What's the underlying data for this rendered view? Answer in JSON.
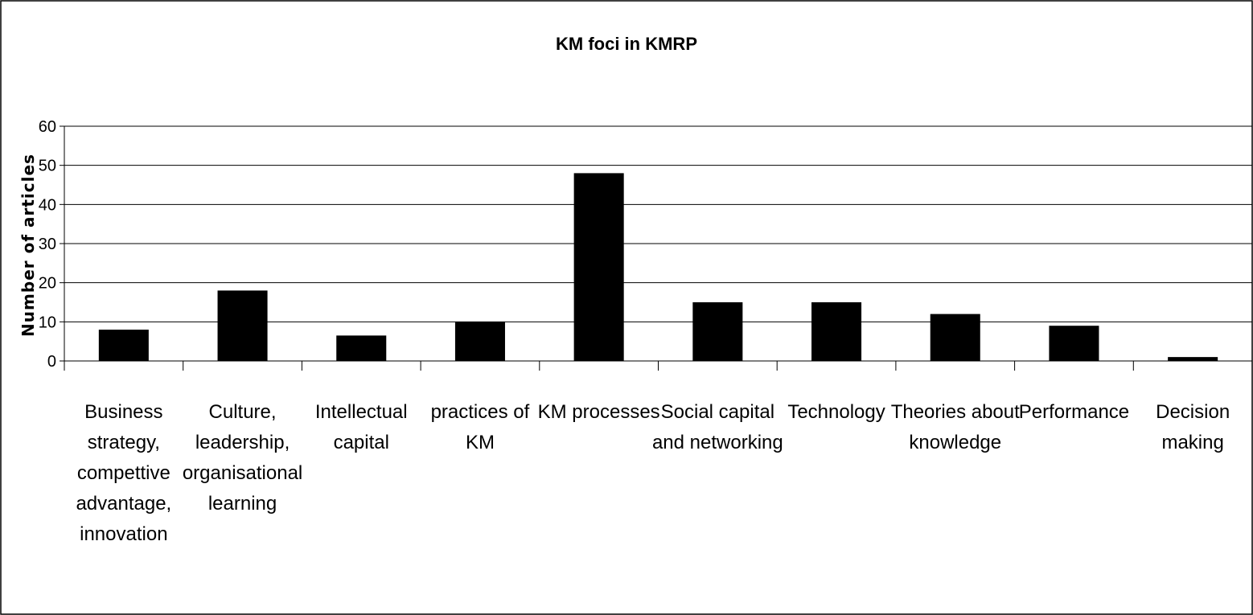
{
  "chart_data": {
    "type": "bar",
    "title": "KM foci in KMRP",
    "ylabel": "Number of articles",
    "xlabel": "",
    "ylim": [
      0,
      60
    ],
    "yticks": [
      0,
      10,
      20,
      30,
      40,
      50,
      60
    ],
    "grid": true,
    "legend": "none",
    "bar_color": "#000000",
    "categories": [
      [
        "Business",
        "strategy,",
        "compettive",
        "advantage,",
        "innovation"
      ],
      [
        "Culture,",
        "leadership,",
        "organisational",
        "learning"
      ],
      [
        "Intellectual",
        "capital"
      ],
      [
        "practices of",
        "KM"
      ],
      [
        "KM processes"
      ],
      [
        "Social capital",
        "and networking"
      ],
      [
        "Technology"
      ],
      [
        "Theories about",
        "knowledge"
      ],
      [
        "Performance"
      ],
      [
        "Decision",
        "making"
      ]
    ],
    "values": [
      8,
      18,
      6.5,
      10,
      48,
      15,
      15,
      12,
      9,
      1
    ]
  }
}
